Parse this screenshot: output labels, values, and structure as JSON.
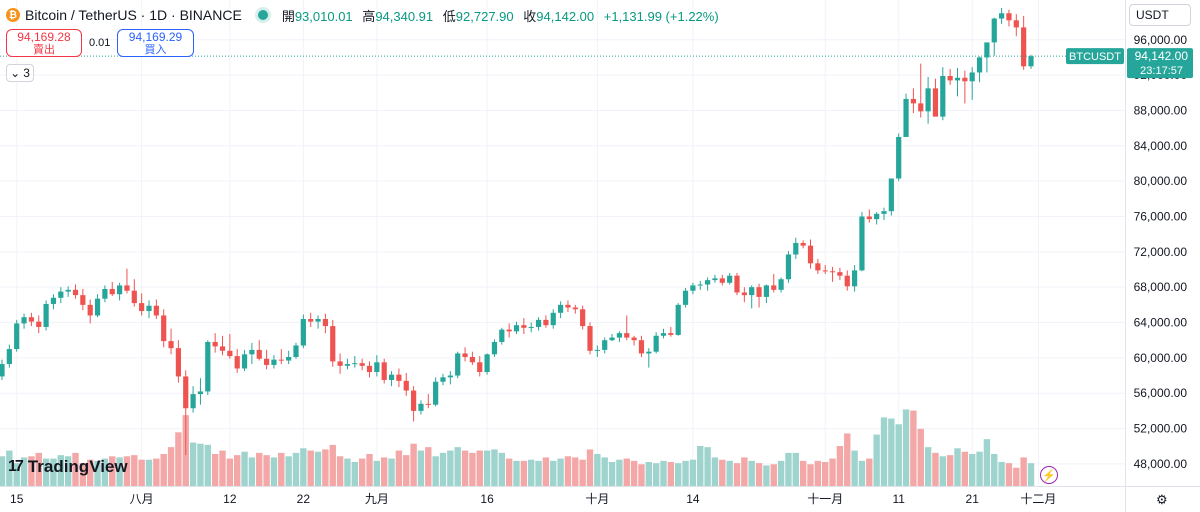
{
  "header": {
    "badge": "₿",
    "title": "Bitcoin / TetherUS · 1D · BINANCE",
    "open_label": "開",
    "open": "93,010.01",
    "high_label": "高",
    "high": "94,340.91",
    "low_label": "低",
    "low": "92,727.90",
    "close_label": "收",
    "close": "94,142.00",
    "change": "+1,131.99 (+1.22%)"
  },
  "trade": {
    "sell_price": "94,169.28",
    "sell_label": "賣出",
    "spread": "0.01",
    "buy_price": "94,169.29",
    "buy_label": "買入"
  },
  "indicators_collapse": {
    "arrow": "⌄",
    "count": "3"
  },
  "currency": {
    "label": "USDT",
    "arrow": "⌄"
  },
  "logo": {
    "mark": "17",
    "text": "TradingView"
  },
  "settings_icon": "⚙",
  "bolt_icon": "⚡",
  "colors": {
    "up": "#26a69a",
    "down": "#ef5350",
    "up_vol": "#9fd4ce",
    "down_vol": "#f3a8a7",
    "grid": "#f0f3fa",
    "price_line": "#26a69a"
  },
  "chart_data": {
    "type": "candlestick",
    "symbol": "BTCUSDT",
    "last_price": "94,142.00",
    "countdown": "23:17:57",
    "ylim": [
      45500,
      100500
    ],
    "yticks": [
      48000,
      52000,
      56000,
      60000,
      64000,
      68000,
      72000,
      76000,
      80000,
      84000,
      88000,
      92000,
      96000
    ],
    "ytick_labels": [
      "48,000.00",
      "52,000.00",
      "56,000.00",
      "60,000.00",
      "64,000.00",
      "68,000.00",
      "72,000.00",
      "76,000.00",
      "80,000.00",
      "84,000.00",
      "88,000.00",
      "92,000.00",
      "96,000.00"
    ],
    "xticks": [
      {
        "i": 2,
        "label": "15"
      },
      {
        "i": 19,
        "label": "八月"
      },
      {
        "i": 31,
        "label": "12"
      },
      {
        "i": 41,
        "label": "22"
      },
      {
        "i": 51,
        "label": "九月"
      },
      {
        "i": 66,
        "label": "16"
      },
      {
        "i": 81,
        "label": "十月"
      },
      {
        "i": 94,
        "label": "14"
      },
      {
        "i": 112,
        "label": "十一月"
      },
      {
        "i": 122,
        "label": "11"
      },
      {
        "i": 132,
        "label": "21"
      },
      {
        "i": 141,
        "label": "十二月"
      }
    ],
    "candles": [
      [
        57900,
        59800,
        57500,
        59300
      ],
      [
        59300,
        61500,
        58900,
        61000
      ],
      [
        61000,
        64300,
        60700,
        63900
      ],
      [
        63900,
        65000,
        63300,
        64600
      ],
      [
        64600,
        65100,
        63600,
        64100
      ],
      [
        64100,
        64800,
        62800,
        63500
      ],
      [
        63500,
        66500,
        63100,
        66100
      ],
      [
        66100,
        67200,
        65500,
        66800
      ],
      [
        66800,
        68000,
        66200,
        67500
      ],
      [
        67500,
        68100,
        66900,
        67700
      ],
      [
        67700,
        68300,
        66700,
        67100
      ],
      [
        67100,
        67800,
        65400,
        66000
      ],
      [
        66000,
        66600,
        63900,
        64800
      ],
      [
        64800,
        67200,
        64600,
        66700
      ],
      [
        66700,
        68200,
        66300,
        67800
      ],
      [
        67800,
        68600,
        67000,
        67200
      ],
      [
        67200,
        68500,
        66500,
        68200
      ],
      [
        68200,
        70100,
        67300,
        67600
      ],
      [
        67600,
        68900,
        65800,
        66200
      ],
      [
        66200,
        67300,
        64800,
        65300
      ],
      [
        65300,
        66500,
        64500,
        65900
      ],
      [
        65900,
        66600,
        64400,
        64800
      ],
      [
        64800,
        65500,
        61200,
        61900
      ],
      [
        61900,
        63300,
        60400,
        61100
      ],
      [
        61100,
        62000,
        57200,
        57900
      ],
      [
        57900,
        58600,
        49000,
        54300
      ],
      [
        54300,
        56800,
        53800,
        55900
      ],
      [
        55900,
        57700,
        54700,
        56200
      ],
      [
        56200,
        62000,
        55800,
        61800
      ],
      [
        61800,
        62800,
        60600,
        61300
      ],
      [
        61300,
        62500,
        60300,
        60800
      ],
      [
        60800,
        62700,
        59900,
        60200
      ],
      [
        60200,
        61000,
        58300,
        58800
      ],
      [
        58800,
        60900,
        58500,
        60400
      ],
      [
        60400,
        61700,
        59300,
        60900
      ],
      [
        60900,
        62000,
        59700,
        59900
      ],
      [
        59900,
        60900,
        58700,
        59200
      ],
      [
        59200,
        60300,
        58800,
        59800
      ],
      [
        59800,
        61000,
        59300,
        59700
      ],
      [
        59700,
        60800,
        59300,
        60100
      ],
      [
        60100,
        61700,
        59900,
        61400
      ],
      [
        61400,
        64900,
        61100,
        64400
      ],
      [
        64400,
        65100,
        63500,
        64100
      ],
      [
        64100,
        64800,
        63300,
        64400
      ],
      [
        64400,
        65000,
        62800,
        63600
      ],
      [
        63600,
        64300,
        59000,
        59600
      ],
      [
        59600,
        60500,
        58200,
        59100
      ],
      [
        59100,
        59900,
        58700,
        59300
      ],
      [
        59300,
        60200,
        58900,
        59400
      ],
      [
        59400,
        59900,
        58600,
        59100
      ],
      [
        59100,
        59600,
        57800,
        58400
      ],
      [
        58400,
        60300,
        57900,
        59500
      ],
      [
        59500,
        59900,
        57100,
        57500
      ],
      [
        57500,
        58500,
        56800,
        58100
      ],
      [
        58100,
        58800,
        56700,
        57400
      ],
      [
        57400,
        58300,
        55700,
        56300
      ],
      [
        56300,
        56800,
        52800,
        54000
      ],
      [
        54000,
        55200,
        53600,
        54800
      ],
      [
        54800,
        55900,
        54300,
        54700
      ],
      [
        54700,
        57800,
        54500,
        57300
      ],
      [
        57300,
        58200,
        56900,
        57800
      ],
      [
        57800,
        58500,
        57000,
        58000
      ],
      [
        58000,
        60700,
        57700,
        60500
      ],
      [
        60500,
        61200,
        59600,
        60100
      ],
      [
        60100,
        60700,
        59200,
        59500
      ],
      [
        59500,
        60200,
        57900,
        58400
      ],
      [
        58400,
        60500,
        58100,
        60400
      ],
      [
        60400,
        62100,
        60100,
        61800
      ],
      [
        61800,
        63400,
        61500,
        63200
      ],
      [
        63200,
        63900,
        62300,
        63000
      ],
      [
        63000,
        64100,
        62700,
        63700
      ],
      [
        63700,
        64500,
        62700,
        63400
      ],
      [
        63400,
        64000,
        62900,
        63500
      ],
      [
        63500,
        64600,
        63100,
        64300
      ],
      [
        64300,
        64800,
        63400,
        63700
      ],
      [
        63700,
        65500,
        63300,
        65100
      ],
      [
        65100,
        66400,
        64500,
        66000
      ],
      [
        66000,
        66500,
        65200,
        65700
      ],
      [
        65700,
        66000,
        65000,
        65500
      ],
      [
        65500,
        65900,
        63200,
        63600
      ],
      [
        63600,
        64000,
        60400,
        60800
      ],
      [
        60800,
        61400,
        60100,
        60900
      ],
      [
        60900,
        62300,
        60500,
        62000
      ],
      [
        62000,
        62700,
        61900,
        62300
      ],
      [
        62300,
        63000,
        61800,
        62800
      ],
      [
        62800,
        64800,
        62000,
        62300
      ],
      [
        62300,
        62500,
        61400,
        62000
      ],
      [
        62000,
        62500,
        60100,
        60500
      ],
      [
        60500,
        61100,
        58900,
        60700
      ],
      [
        60700,
        62900,
        60500,
        62500
      ],
      [
        62500,
        63300,
        62200,
        62800
      ],
      [
        62800,
        63500,
        62400,
        62600
      ],
      [
        62600,
        66200,
        62500,
        66000
      ],
      [
        66000,
        67900,
        65700,
        67600
      ],
      [
        67600,
        68500,
        67200,
        68200
      ],
      [
        68200,
        68700,
        67700,
        68300
      ],
      [
        68300,
        69100,
        67600,
        68800
      ],
      [
        68800,
        69400,
        68500,
        69000
      ],
      [
        69000,
        69400,
        68200,
        68500
      ],
      [
        68500,
        69600,
        68300,
        69300
      ],
      [
        69300,
        69600,
        67100,
        67400
      ],
      [
        67400,
        68000,
        66300,
        67100
      ],
      [
        67100,
        68200,
        65600,
        68000
      ],
      [
        68000,
        68400,
        65700,
        66900
      ],
      [
        66900,
        68300,
        66200,
        68200
      ],
      [
        68200,
        69500,
        67400,
        67700
      ],
      [
        67700,
        69100,
        67400,
        68900
      ],
      [
        68900,
        72100,
        68500,
        71700
      ],
      [
        71700,
        73600,
        71200,
        73000
      ],
      [
        73000,
        73300,
        72400,
        72700
      ],
      [
        72700,
        73400,
        70100,
        70700
      ],
      [
        70700,
        71200,
        69500,
        69900
      ],
      [
        69900,
        70500,
        69500,
        69800
      ],
      [
        69800,
        70300,
        68600,
        69700
      ],
      [
        69700,
        70200,
        68800,
        69300
      ],
      [
        69300,
        69900,
        67600,
        68100
      ],
      [
        68100,
        70500,
        67500,
        69900
      ],
      [
        69900,
        76500,
        69800,
        76000
      ],
      [
        76000,
        76800,
        75300,
        75700
      ],
      [
        75700,
        76500,
        75100,
        76300
      ],
      [
        76300,
        77000,
        75600,
        76600
      ],
      [
        76600,
        80300,
        76100,
        80300
      ],
      [
        80300,
        85400,
        80000,
        85000
      ],
      [
        85000,
        89900,
        85000,
        89300
      ],
      [
        89300,
        90500,
        87700,
        88800
      ],
      [
        88800,
        93300,
        87200,
        87900
      ],
      [
        87900,
        91800,
        86500,
        90500
      ],
      [
        90500,
        91600,
        87800,
        87300
      ],
      [
        87300,
        92900,
        86900,
        91900
      ],
      [
        91900,
        92700,
        90900,
        91400
      ],
      [
        91400,
        92800,
        89600,
        91700
      ],
      [
        91700,
        92500,
        88800,
        91300
      ],
      [
        91300,
        92900,
        89200,
        92300
      ],
      [
        92300,
        94100,
        91200,
        94000
      ],
      [
        94000,
        95400,
        92300,
        95700
      ],
      [
        95700,
        98500,
        94200,
        98400
      ],
      [
        98400,
        99600,
        97800,
        99000
      ],
      [
        99000,
        99400,
        97500,
        98200
      ],
      [
        98200,
        98900,
        96400,
        97400
      ],
      [
        97400,
        98700,
        92600,
        93000
      ],
      [
        93000,
        94300,
        92700,
        94142
      ]
    ],
    "volume": [
      26,
      31,
      20,
      25,
      26,
      29,
      24,
      24,
      27,
      26,
      29,
      20,
      23,
      22,
      24,
      26,
      25,
      26,
      27,
      23,
      23,
      24,
      28,
      34,
      47,
      62,
      38,
      37,
      36,
      28,
      31,
      24,
      27,
      30,
      25,
      29,
      27,
      25,
      29,
      26,
      29,
      33,
      31,
      30,
      32,
      36,
      26,
      24,
      21,
      24,
      28,
      22,
      25,
      24,
      31,
      27,
      37,
      31,
      34,
      26,
      29,
      31,
      34,
      31,
      29,
      31,
      31,
      32,
      29,
      24,
      22,
      22,
      23,
      22,
      25,
      22,
      24,
      26,
      25,
      23,
      32,
      28,
      25,
      21,
      23,
      24,
      22,
      19,
      21,
      20,
      22,
      21,
      20,
      22,
      23,
      35,
      34,
      25,
      23,
      22,
      20,
      25,
      22,
      20,
      18,
      19,
      22,
      29,
      29,
      22,
      19,
      22,
      21,
      24,
      35,
      46,
      31,
      22,
      24,
      45,
      60,
      59,
      54,
      67,
      66,
      50,
      34,
      29,
      26,
      27,
      33,
      30,
      28,
      30,
      41,
      28,
      21,
      20,
      16,
      25,
      20
    ],
    "vol_max": 70
  }
}
